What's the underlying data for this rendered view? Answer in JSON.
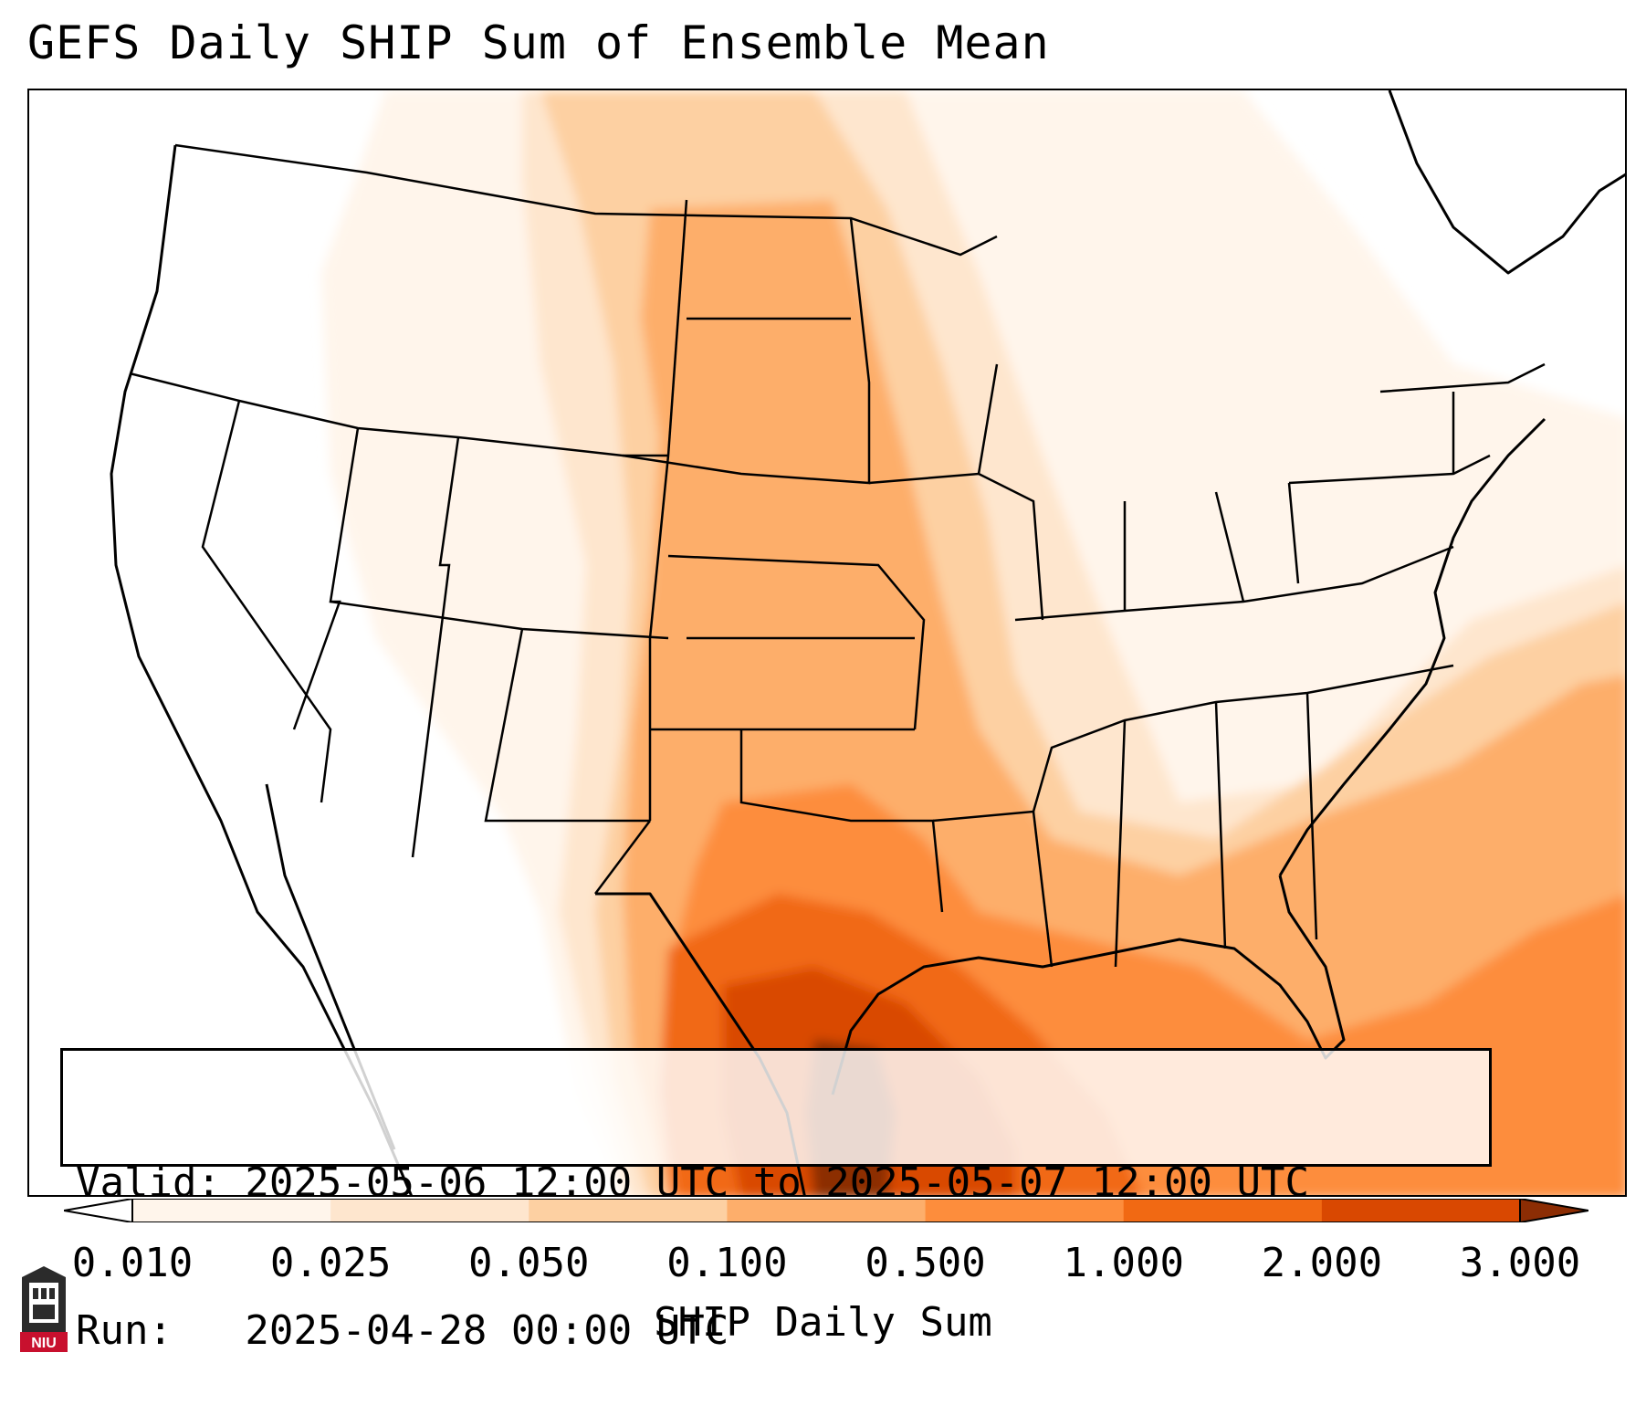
{
  "title": "GEFS Daily SHIP Sum of Ensemble Mean",
  "info": {
    "valid_line": "Valid: 2025-05-06 12:00 UTC to 2025-05-07 12:00 UTC",
    "run_line": "Run:   2025-04-28 00:00 UTC"
  },
  "colorbar": {
    "label": "SHIP Daily Sum",
    "ticks": [
      "0.010",
      "0.025",
      "0.050",
      "0.100",
      "0.500",
      "1.000",
      "2.000",
      "3.000"
    ],
    "colors": [
      "#fff5eb",
      "#fee6ce",
      "#fdd0a2",
      "#fdae6b",
      "#fd8d3c",
      "#f16913",
      "#d94801",
      "#8c2d04"
    ],
    "extend": "both"
  },
  "map": {
    "region": "Contiguous United States",
    "colormap": "Oranges",
    "max_region": "Texas Gulf Coast"
  },
  "logo": {
    "text": "NIU",
    "icon": "niu-logo-icon",
    "color": "#c8102e"
  }
}
